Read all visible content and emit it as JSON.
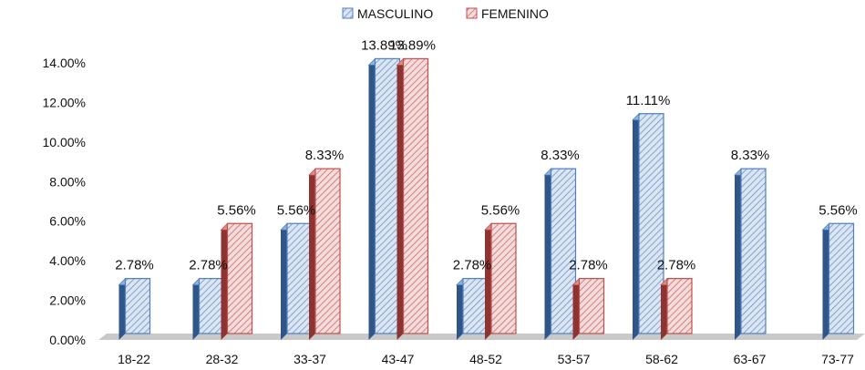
{
  "chart_data": {
    "type": "bar",
    "title": "",
    "xlabel": "",
    "ylabel": "",
    "categories": [
      "18-22",
      "28-32",
      "33-37",
      "43-47",
      "48-52",
      "53-57",
      "58-62",
      "63-67",
      "73-77"
    ],
    "series": [
      {
        "name": "MASCULINO",
        "color": "#4f81bd",
        "values": [
          2.78,
          2.78,
          5.56,
          13.89,
          2.78,
          8.33,
          11.11,
          8.33,
          5.56
        ],
        "labels": [
          "2.78%",
          "2.78%",
          "5.56%",
          "13.89%",
          "2.78%",
          "8.33%",
          "11.11%",
          "8.33%",
          "5.56%"
        ]
      },
      {
        "name": "FEMENINO",
        "color": "#c0504d",
        "values": [
          null,
          5.56,
          8.33,
          13.89,
          5.56,
          2.78,
          2.78,
          null,
          null
        ],
        "labels": [
          "",
          "5.56%",
          "8.33%",
          "13.89%",
          "5.56%",
          "2.78%",
          "2.78%",
          "",
          ""
        ]
      }
    ],
    "y_ticks": [
      "0.00%",
      "2.00%",
      "4.00%",
      "6.00%",
      "8.00%",
      "10.00%",
      "12.00%",
      "14.00%"
    ],
    "ylim": [
      0,
      14
    ],
    "grid": false,
    "legend_position": "top"
  }
}
